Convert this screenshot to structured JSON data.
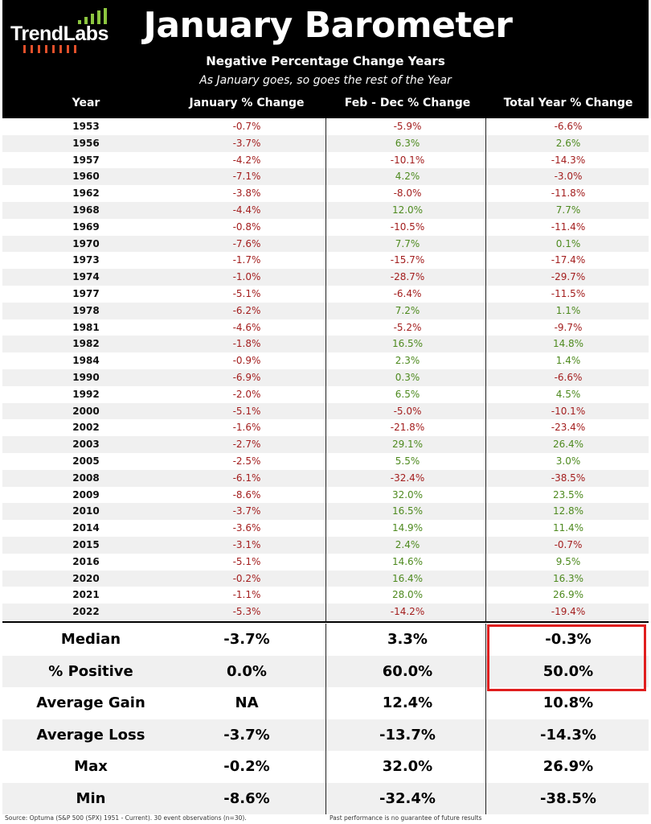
{
  "brand": {
    "name": "TrendLabs"
  },
  "header": {
    "title": "January Barometer",
    "subtitle": "Negative Percentage Change Years",
    "tagline": "As January goes, so goes the rest of the Year"
  },
  "columns": [
    "Year",
    "January % Change",
    "Feb - Dec % Change",
    "Total Year % Change"
  ],
  "rows": [
    {
      "year": "1953",
      "jan": "-0.7%",
      "feb": "-5.9%",
      "total": "-6.6%"
    },
    {
      "year": "1956",
      "jan": "-3.7%",
      "feb": "6.3%",
      "total": "2.6%"
    },
    {
      "year": "1957",
      "jan": "-4.2%",
      "feb": "-10.1%",
      "total": "-14.3%"
    },
    {
      "year": "1960",
      "jan": "-7.1%",
      "feb": "4.2%",
      "total": "-3.0%"
    },
    {
      "year": "1962",
      "jan": "-3.8%",
      "feb": "-8.0%",
      "total": "-11.8%"
    },
    {
      "year": "1968",
      "jan": "-4.4%",
      "feb": "12.0%",
      "total": "7.7%"
    },
    {
      "year": "1969",
      "jan": "-0.8%",
      "feb": "-10.5%",
      "total": "-11.4%"
    },
    {
      "year": "1970",
      "jan": "-7.6%",
      "feb": "7.7%",
      "total": "0.1%"
    },
    {
      "year": "1973",
      "jan": "-1.7%",
      "feb": "-15.7%",
      "total": "-17.4%"
    },
    {
      "year": "1974",
      "jan": "-1.0%",
      "feb": "-28.7%",
      "total": "-29.7%"
    },
    {
      "year": "1977",
      "jan": "-5.1%",
      "feb": "-6.4%",
      "total": "-11.5%"
    },
    {
      "year": "1978",
      "jan": "-6.2%",
      "feb": "7.2%",
      "total": "1.1%"
    },
    {
      "year": "1981",
      "jan": "-4.6%",
      "feb": "-5.2%",
      "total": "-9.7%"
    },
    {
      "year": "1982",
      "jan": "-1.8%",
      "feb": "16.5%",
      "total": "14.8%"
    },
    {
      "year": "1984",
      "jan": "-0.9%",
      "feb": "2.3%",
      "total": "1.4%"
    },
    {
      "year": "1990",
      "jan": "-6.9%",
      "feb": "0.3%",
      "total": "-6.6%"
    },
    {
      "year": "1992",
      "jan": "-2.0%",
      "feb": "6.5%",
      "total": "4.5%"
    },
    {
      "year": "2000",
      "jan": "-5.1%",
      "feb": "-5.0%",
      "total": "-10.1%"
    },
    {
      "year": "2002",
      "jan": "-1.6%",
      "feb": "-21.8%",
      "total": "-23.4%"
    },
    {
      "year": "2003",
      "jan": "-2.7%",
      "feb": "29.1%",
      "total": "26.4%"
    },
    {
      "year": "2005",
      "jan": "-2.5%",
      "feb": "5.5%",
      "total": "3.0%"
    },
    {
      "year": "2008",
      "jan": "-6.1%",
      "feb": "-32.4%",
      "total": "-38.5%"
    },
    {
      "year": "2009",
      "jan": "-8.6%",
      "feb": "32.0%",
      "total": "23.5%"
    },
    {
      "year": "2010",
      "jan": "-3.7%",
      "feb": "16.5%",
      "total": "12.8%"
    },
    {
      "year": "2014",
      "jan": "-3.6%",
      "feb": "14.9%",
      "total": "11.4%"
    },
    {
      "year": "2015",
      "jan": "-3.1%",
      "feb": "2.4%",
      "total": "-0.7%"
    },
    {
      "year": "2016",
      "jan": "-5.1%",
      "feb": "14.6%",
      "total": "9.5%"
    },
    {
      "year": "2020",
      "jan": "-0.2%",
      "feb": "16.4%",
      "total": "16.3%"
    },
    {
      "year": "2021",
      "jan": "-1.1%",
      "feb": "28.0%",
      "total": "26.9%"
    },
    {
      "year": "2022",
      "jan": "-5.3%",
      "feb": "-14.2%",
      "total": "-19.4%"
    }
  ],
  "stats": [
    {
      "label": "Median",
      "jan": "-3.7%",
      "feb": "3.3%",
      "total": "-0.3%"
    },
    {
      "label": "% Positive",
      "jan": "0.0%",
      "feb": "60.0%",
      "total": "50.0%"
    },
    {
      "label": "Average Gain",
      "jan": "NA",
      "feb": "12.4%",
      "total": "10.8%"
    },
    {
      "label": "Average Loss",
      "jan": "-3.7%",
      "feb": "-13.7%",
      "total": "-14.3%"
    },
    {
      "label": "Max",
      "jan": "-0.2%",
      "feb": "32.0%",
      "total": "26.9%"
    },
    {
      "label": "Min",
      "jan": "-8.6%",
      "feb": "-32.4%",
      "total": "-38.5%"
    }
  ],
  "footer": {
    "source": "Source: Optuma (S&P 500 (SPX) 1951 - Current). 30 event observations (n=30).",
    "disclaimer": "Past performance is no guarantee of future results"
  },
  "colors": {
    "negative": "#a31e1e",
    "positive": "#4e8a1f",
    "highlight": "#e01e1e",
    "header_bg": "#000000"
  }
}
